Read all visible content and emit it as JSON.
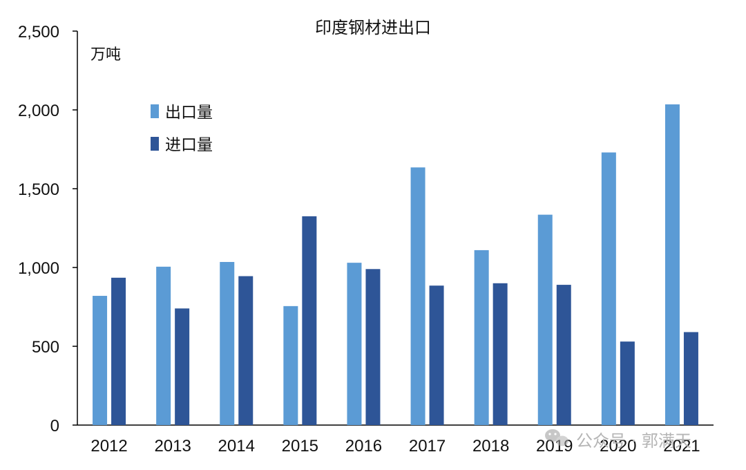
{
  "chart_data": {
    "type": "bar",
    "title": "印度钢材进出口",
    "unit_label": "万吨",
    "categories": [
      "2012",
      "2013",
      "2014",
      "2015",
      "2016",
      "2017",
      "2018",
      "2019",
      "2020",
      "2021"
    ],
    "series": [
      {
        "name": "出口量",
        "color": "#5b9bd5",
        "values": [
          820,
          1005,
          1035,
          755,
          1030,
          1635,
          1110,
          1335,
          1730,
          2035
        ]
      },
      {
        "name": "进口量",
        "color": "#2e5597",
        "values": [
          935,
          740,
          945,
          1325,
          990,
          885,
          900,
          890,
          530,
          590
        ]
      }
    ],
    "ylim": [
      0,
      2500
    ],
    "yticks": [
      0,
      500,
      1000,
      1500,
      2000,
      2500
    ],
    "ytick_labels": [
      "0",
      "500",
      "1,000",
      "1,500",
      "2,000",
      "2,500"
    ],
    "grid": false,
    "legend_position": "upper-left"
  },
  "watermark": {
    "text": "公众号 · 郭满天",
    "icon": "wechat-icon"
  }
}
